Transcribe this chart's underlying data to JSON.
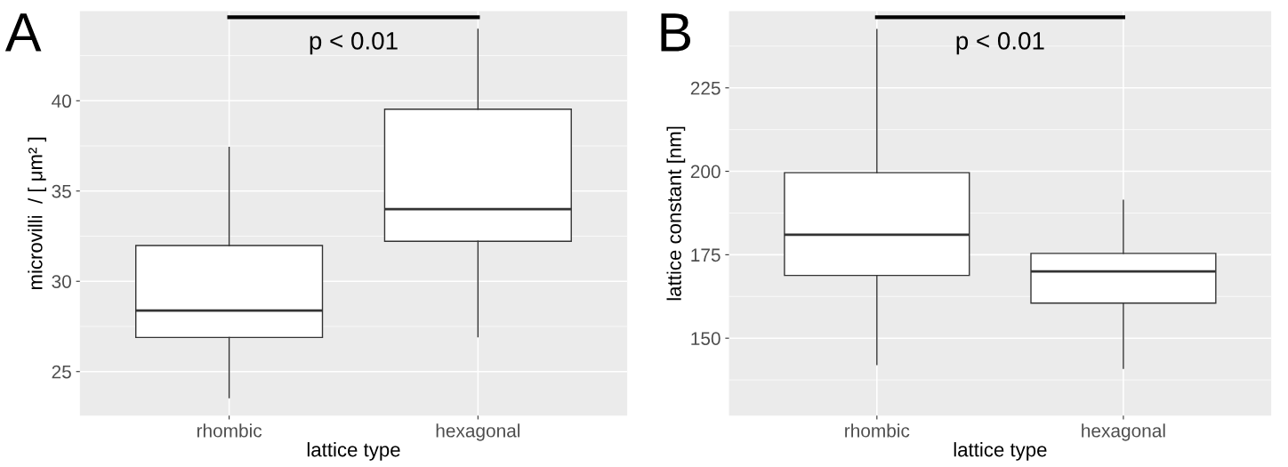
{
  "chart_data": [
    {
      "type": "box",
      "title": "A",
      "xlabel": "lattice type",
      "ylabel": "microvilli  / [ μm² ]",
      "categories": [
        "rhombic",
        "hexagonal"
      ],
      "boxes": [
        {
          "low": 23.56,
          "q1": 26.89,
          "median": 28.38,
          "q3": 31.98,
          "high": 37.42
        },
        {
          "low": 26.93,
          "q1": 32.22,
          "median": 34.0,
          "q3": 39.53,
          "high": 43.96
        }
      ],
      "ylim": [
        22.56,
        44.96
      ],
      "yticks": [
        25,
        30,
        35,
        40
      ],
      "grid": true,
      "annotations": [
        "p < 0.01"
      ]
    },
    {
      "type": "box",
      "title": "B",
      "xlabel": "lattice type",
      "ylabel": "lattice constant [nm]",
      "categories": [
        "rhombic",
        "hexagonal"
      ],
      "boxes": [
        {
          "low": 142.1,
          "q1": 168.8,
          "median": 181.0,
          "q3": 199.6,
          "high": 242.5
        },
        {
          "low": 141.0,
          "q1": 160.5,
          "median": 170.0,
          "q3": 175.4,
          "high": 191.3
        }
      ],
      "ylim": [
        126.8,
        247.96
      ],
      "yticks": [
        150,
        175,
        200,
        225
      ],
      "grid": true,
      "annotations": [
        "p < 0.01"
      ]
    }
  ]
}
